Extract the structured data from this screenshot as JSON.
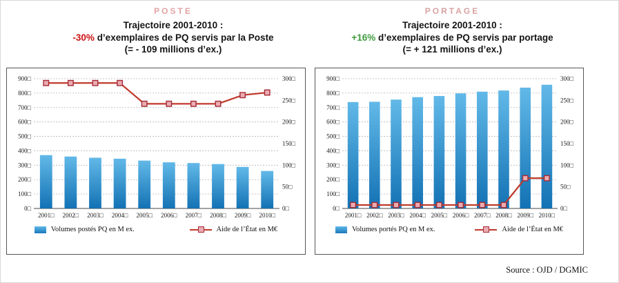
{
  "page": {
    "source": "Source : OJD  / DGMIC"
  },
  "chart_data": [
    {
      "type": "bar",
      "header": {
        "title": "POSTE",
        "title_color": "#e2a3a3",
        "line1": "Trajectoire 2001-2010 :",
        "pct": "-30%",
        "pct_color": "#cc1111",
        "rest": " d’exemplaires de PQ servis par la Poste",
        "line3": "(= - 109 millions d’ex.)"
      },
      "categories": [
        "2001",
        "2002",
        "2003",
        "2004",
        "2005",
        "2006",
        "2007",
        "2008",
        "2009",
        "2010"
      ],
      "series": [
        {
          "name": "Volumes postés PQ en M ex.",
          "type": "bar",
          "axis": "left",
          "values": [
            370,
            360,
            352,
            345,
            332,
            320,
            315,
            308,
            288,
            260
          ]
        },
        {
          "name": "Aide de l’État en M€",
          "type": "line",
          "axis": "right",
          "values": [
            290,
            290,
            290,
            290,
            242,
            242,
            242,
            242,
            262,
            268
          ]
        }
      ],
      "axes": {
        "left": {
          "min": 0,
          "max": 900,
          "step": 100
        },
        "right": {
          "min": 0,
          "max": 300,
          "step": 50
        },
        "tick_suffix": "□"
      },
      "colors": {
        "bar_top": "#62b9e8",
        "bar_bottom": "#1372b4",
        "line": "#c0392b",
        "marker_fill": "#eaacb2",
        "marker_stroke": "#a52a35",
        "grid": "#b4b4b4"
      },
      "legend_position": "bottom",
      "grid": true
    },
    {
      "type": "bar",
      "header": {
        "title": "PORTAGE",
        "title_color": "#d8a2a2",
        "line1": "Trajectoire 2001-2010 :",
        "pct": "+16%",
        "pct_color": "#3f9c3f",
        "rest": " d’exemplaires de PQ servis par portage",
        "line3": "(= + 121 millions d’ex.)"
      },
      "categories": [
        "2001",
        "2002",
        "2003",
        "2004",
        "2005",
        "2006",
        "2007",
        "2008",
        "2009",
        "2010"
      ],
      "series": [
        {
          "name": "Volumes portés PQ en M ex.",
          "type": "bar",
          "axis": "left",
          "values": [
            738,
            740,
            755,
            772,
            780,
            798,
            810,
            818,
            838,
            858
          ]
        },
        {
          "name": "Aide de l’État en M€",
          "type": "line",
          "axis": "right",
          "values": [
            8,
            8,
            8,
            8,
            8,
            8,
            8,
            8,
            70,
            70
          ]
        }
      ],
      "axes": {
        "left": {
          "min": 0,
          "max": 900,
          "step": 100
        },
        "right": {
          "min": 0,
          "max": 300,
          "step": 50
        },
        "tick_suffix": "□"
      },
      "colors": {
        "bar_top": "#62b9e8",
        "bar_bottom": "#1372b4",
        "line": "#c0392b",
        "marker_fill": "#eaacb2",
        "marker_stroke": "#a52a35",
        "grid": "#b4b4b4"
      },
      "legend_position": "bottom",
      "grid": true
    }
  ]
}
